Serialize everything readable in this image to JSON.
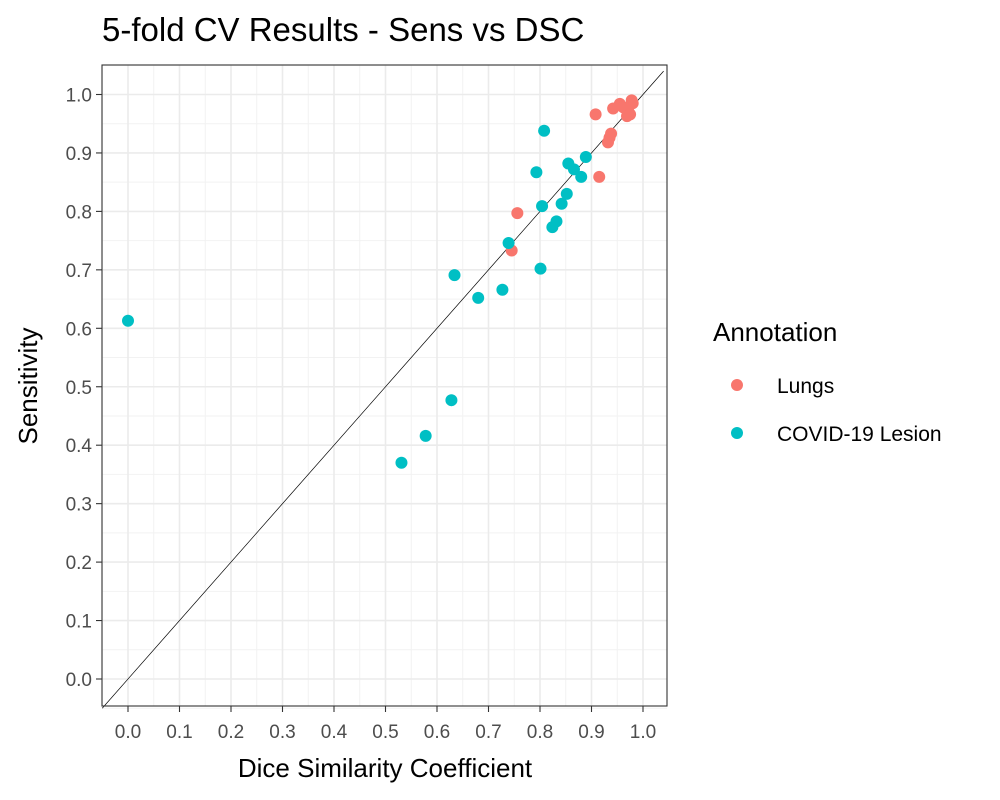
{
  "chart_data": {
    "type": "scatter",
    "title": "5-fold CV Results - Sens vs DSC",
    "xlabel": "Dice Similarity Coefficient",
    "ylabel": "Sensitivity",
    "xlim": [
      -0.05,
      1.04
    ],
    "ylim": [
      -0.05,
      1.05
    ],
    "x_ticks": [
      "0.0",
      "0.1",
      "0.2",
      "0.3",
      "0.4",
      "0.5",
      "0.6",
      "0.7",
      "0.8",
      "0.9",
      "1.0"
    ],
    "y_ticks": [
      "0.0",
      "0.1",
      "0.2",
      "0.3",
      "0.4",
      "0.5",
      "0.6",
      "0.7",
      "0.8",
      "0.9",
      "1.0"
    ],
    "grid": true,
    "reference_line": "y = x",
    "legend": {
      "title": "Annotation",
      "placement": "right"
    },
    "series": [
      {
        "name": "Lungs",
        "color": "#F8766D",
        "points": [
          [
            0.908,
            0.966
          ],
          [
            0.942,
            0.976
          ],
          [
            0.955,
            0.984
          ],
          [
            0.962,
            0.978
          ],
          [
            0.969,
            0.963
          ],
          [
            0.972,
            0.97
          ],
          [
            0.975,
            0.966
          ],
          [
            0.978,
            0.99
          ],
          [
            0.98,
            0.985
          ],
          [
            0.938,
            0.933
          ],
          [
            0.935,
            0.926
          ],
          [
            0.932,
            0.918
          ],
          [
            0.915,
            0.859
          ],
          [
            0.756,
            0.797
          ],
          [
            0.745,
            0.733
          ]
        ]
      },
      {
        "name": "COVID-19 Lesion",
        "color": "#00BFC4",
        "points": [
          [
            0.0,
            0.613
          ],
          [
            0.531,
            0.37
          ],
          [
            0.578,
            0.416
          ],
          [
            0.628,
            0.477
          ],
          [
            0.634,
            0.691
          ],
          [
            0.68,
            0.652
          ],
          [
            0.727,
            0.666
          ],
          [
            0.739,
            0.746
          ],
          [
            0.793,
            0.867
          ],
          [
            0.801,
            0.702
          ],
          [
            0.804,
            0.809
          ],
          [
            0.808,
            0.938
          ],
          [
            0.824,
            0.773
          ],
          [
            0.832,
            0.783
          ],
          [
            0.842,
            0.813
          ],
          [
            0.852,
            0.83
          ],
          [
            0.855,
            0.882
          ],
          [
            0.866,
            0.872
          ],
          [
            0.88,
            0.859
          ],
          [
            0.889,
            0.893
          ]
        ]
      }
    ]
  }
}
